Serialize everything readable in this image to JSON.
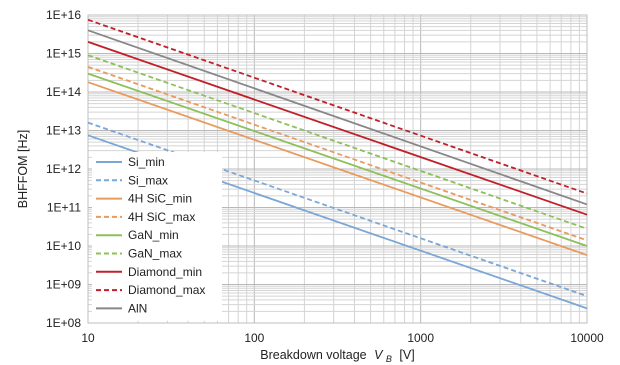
{
  "chart_data": {
    "type": "line",
    "xlabel": "Breakdown voltage",
    "xlabel_symbol": "V",
    "xlabel_subscript": "B",
    "xlabel_unit": "[V]",
    "ylabel": "BHFFOM [Hz]",
    "xscale": "log",
    "yscale": "log",
    "xlim": [
      10,
      10000
    ],
    "ylim": [
      100000000.0,
      1e+16
    ],
    "x_ticks": [
      10,
      100,
      1000,
      10000
    ],
    "x_tick_labels": [
      "10",
      "100",
      "1000",
      "10000"
    ],
    "y_ticks": [
      100000000.0,
      1000000000.0,
      10000000000.0,
      100000000000.0,
      1000000000000.0,
      10000000000000.0,
      100000000000000.0,
      1000000000000000.0,
      1e+16
    ],
    "y_tick_labels": [
      "1E+08",
      "1E+09",
      "1E+10",
      "1E+11",
      "1E+12",
      "1E+13",
      "1E+14",
      "1E+15",
      "1E+16"
    ],
    "grid": true,
    "legend_position": "lower-left",
    "series": [
      {
        "name": "Si_min",
        "color": "#7ba7d6",
        "dash": false,
        "x": [
          10,
          10000
        ],
        "y": [
          7500000000000.0,
          240000000.0
        ]
      },
      {
        "name": "Si_max",
        "color": "#7ba7d6",
        "dash": true,
        "x": [
          10,
          10000
        ],
        "y": [
          16000000000000.0,
          500000000.0
        ]
      },
      {
        "name": "4H SiC_min",
        "color": "#e89b5e",
        "dash": false,
        "x": [
          10,
          10000
        ],
        "y": [
          180000000000000.0,
          5800000000.0
        ]
      },
      {
        "name": "4H SiC_max",
        "color": "#e89b5e",
        "dash": true,
        "x": [
          10,
          10000
        ],
        "y": [
          450000000000000.0,
          14000000000.0
        ]
      },
      {
        "name": "GaN_min",
        "color": "#8dbf5a",
        "dash": false,
        "x": [
          10,
          10000
        ],
        "y": [
          300000000000000.0,
          10000000000.0
        ]
      },
      {
        "name": "GaN_max",
        "color": "#8dbf5a",
        "dash": true,
        "x": [
          10,
          10000
        ],
        "y": [
          900000000000000.0,
          28000000000.0
        ]
      },
      {
        "name": "Diamond_min",
        "color": "#c0202a",
        "dash": false,
        "x": [
          10,
          10000
        ],
        "y": [
          2000000000000000.0,
          65000000000.0
        ]
      },
      {
        "name": "Diamond_max",
        "color": "#c0202a",
        "dash": true,
        "x": [
          10,
          10000
        ],
        "y": [
          7500000000000000.0,
          230000000000.0
        ]
      },
      {
        "name": "AlN",
        "color": "#888888",
        "dash": false,
        "x": [
          10,
          10000
        ],
        "y": [
          4000000000000000.0,
          120000000000.0
        ]
      }
    ]
  }
}
